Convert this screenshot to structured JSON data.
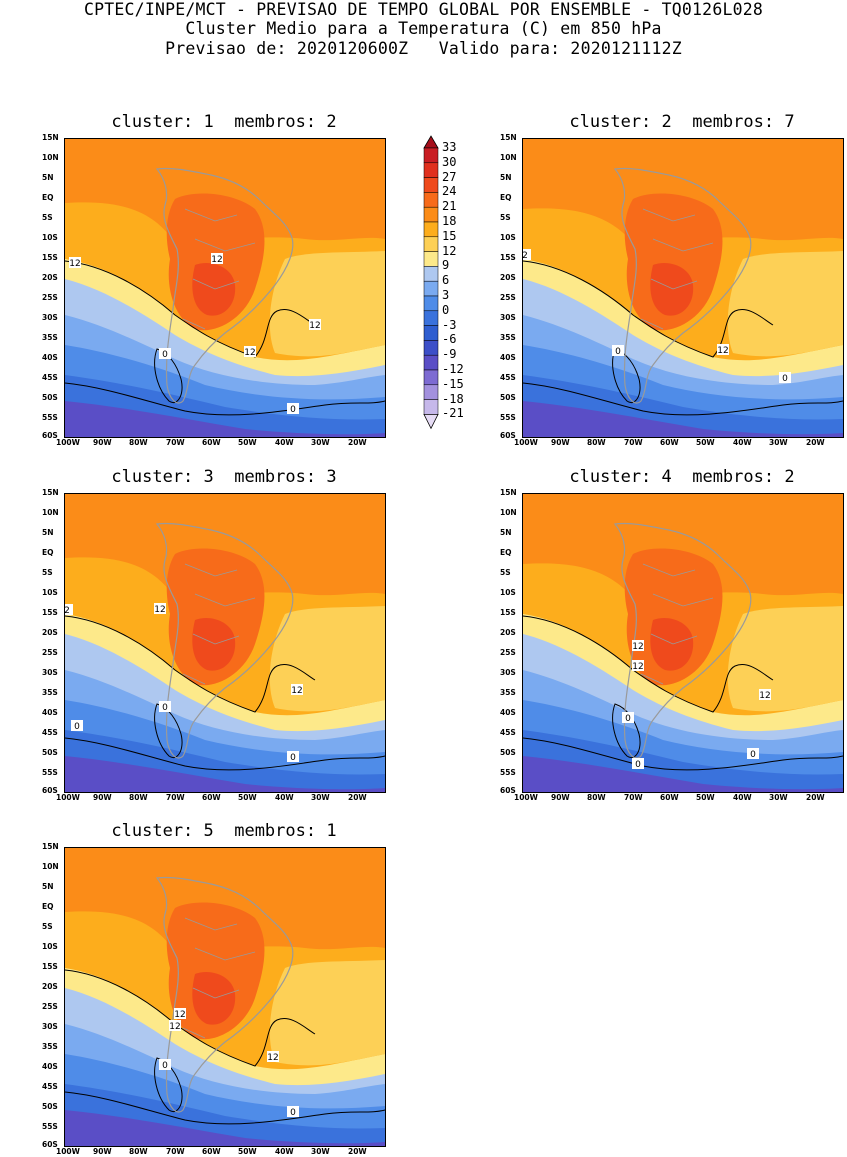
{
  "header": {
    "line1": "CPTEC/INPE/MCT - PREVISAO DE TEMPO GLOBAL POR ENSEMBLE - TQ0126L028",
    "line2": "Cluster Medio para a Temperatura (C) em 850 hPa",
    "line3": "Previsao de: 2020120600Z   Valido para: 2020121112Z"
  },
  "axes": {
    "lat_ticks": [
      "15N",
      "10N",
      "5N",
      "EQ",
      "5S",
      "10S",
      "15S",
      "20S",
      "25S",
      "30S",
      "35S",
      "40S",
      "45S",
      "50S",
      "55S",
      "60S"
    ],
    "lon_ticks": [
      "100W",
      "90W",
      "80W",
      "70W",
      "60W",
      "50W",
      "40W",
      "30W",
      "20W"
    ]
  },
  "colorbar": {
    "labels": [
      "33",
      "30",
      "27",
      "24",
      "21",
      "18",
      "15",
      "12",
      "9",
      "6",
      "3",
      "0",
      "-3",
      "-6",
      "-9",
      "-12",
      "-15",
      "-18",
      "-21"
    ],
    "colors": [
      "#a50e1a",
      "#c91d23",
      "#e0301e",
      "#ef4a1c",
      "#f76b1a",
      "#fb8c18",
      "#fdad1c",
      "#fdd056",
      "#fde98a",
      "#aec8f0",
      "#7aaaf0",
      "#4f8ce8",
      "#3a72dc",
      "#2f5ed0",
      "#3c4fc8",
      "#5a4ec6",
      "#7d6bd2",
      "#a391de",
      "#c6b8ea",
      "#e6dcf5"
    ]
  },
  "panels": [
    {
      "title": "cluster: 1  membros: 2",
      "labels": [
        "12",
        "12",
        "12",
        "12",
        "0",
        "0"
      ]
    },
    {
      "title": "cluster: 2  membros: 7",
      "labels": [
        "2",
        "12",
        "0",
        "0"
      ]
    },
    {
      "title": "cluster: 3  membros: 3",
      "labels": [
        "2",
        "12",
        "12",
        "0",
        "0",
        "0"
      ]
    },
    {
      "title": "cluster: 4  membros: 2",
      "labels": [
        "12",
        "12",
        "12",
        "0",
        "0",
        "0"
      ]
    },
    {
      "title": "cluster: 5  membros: 1",
      "labels": [
        "12",
        "12",
        "12",
        "0",
        "0"
      ]
    }
  ]
}
